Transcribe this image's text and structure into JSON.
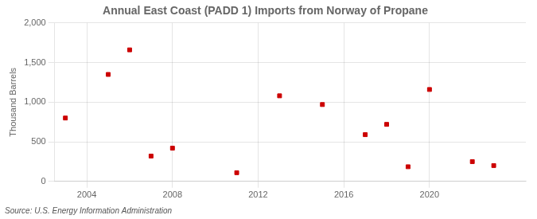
{
  "chart_data": {
    "type": "scatter",
    "title": "Annual East Coast (PADD 1) Imports from Norway of Propane",
    "ylabel": "Thousand Barrels",
    "annotation": "Source: U.S. Energy Information Administration",
    "x": [
      2003,
      2005,
      2006,
      2007,
      2008,
      2011,
      2013,
      2015,
      2017,
      2018,
      2019,
      2020,
      2022,
      2023
    ],
    "values": [
      800,
      1350,
      1660,
      320,
      420,
      110,
      1080,
      970,
      590,
      720,
      185,
      1160,
      250,
      200
    ],
    "color": "#cc0000",
    "marker": "square",
    "xlim": [
      2002.5,
      2024.5
    ],
    "xticks": [
      2004,
      2008,
      2012,
      2016,
      2020
    ],
    "ylim": [
      0,
      2000
    ],
    "yticks": [
      0,
      500,
      {
        "value": 1000,
        "label": "1,000"
      },
      {
        "value": 1500,
        "label": "1,500"
      },
      {
        "value": 2000,
        "label": "2,000"
      }
    ],
    "grid": true
  }
}
